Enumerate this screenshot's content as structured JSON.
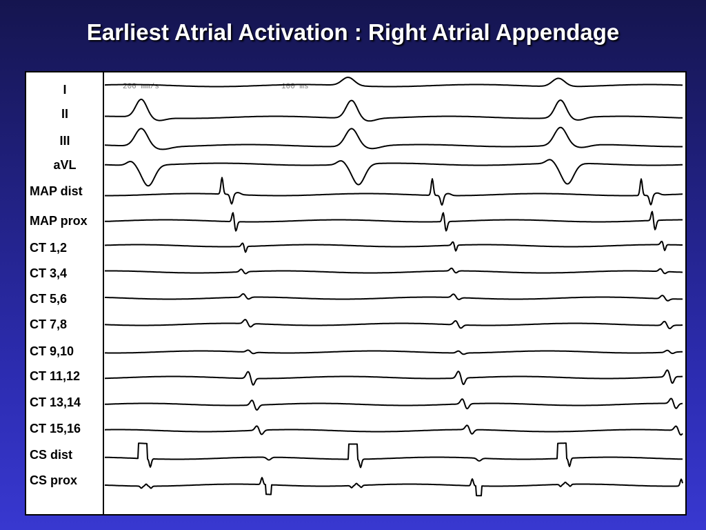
{
  "title": "Earliest Atrial Activation : Right Atrial Appendage",
  "scale_labels": [
    "200 mm/s",
    "100 ms"
  ],
  "channels": [
    "I",
    "II",
    "III",
    "aVL",
    "MAP dist",
    "MAP prox",
    "CT 1,2",
    "CT 3,4",
    "CT 5,6",
    "CT 7,8",
    "CT 9,10",
    "CT 11,12",
    "CT 13,14",
    "CT 15,16",
    "CS dist",
    "CS prox"
  ]
}
